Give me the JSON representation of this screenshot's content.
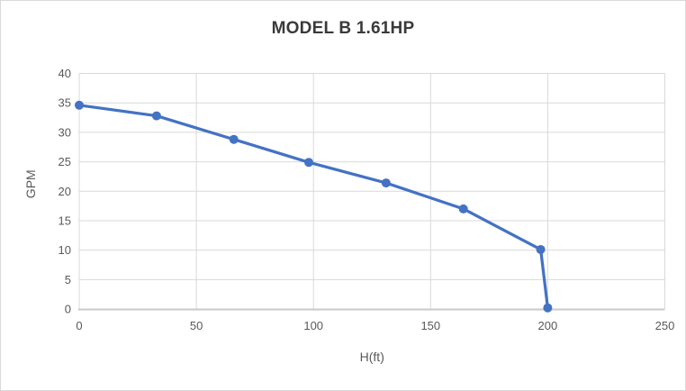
{
  "chart_data": {
    "type": "line",
    "title": "MODEL B 1.61HP",
    "xlabel": "H(ft)",
    "ylabel": "GPM",
    "x": [
      0,
      33,
      66,
      98,
      131,
      164,
      197,
      200
    ],
    "y": [
      34.6,
      32.8,
      28.8,
      24.9,
      21.4,
      17,
      10.1,
      0.2
    ],
    "series_name": "",
    "xlim": [
      0,
      250
    ],
    "ylim": [
      0,
      40
    ],
    "x_ticks": [
      0,
      50,
      100,
      150,
      200,
      250
    ],
    "y_ticks": [
      0,
      5,
      10,
      15,
      20,
      25,
      30,
      35,
      40
    ],
    "grid": true,
    "legend": false,
    "marker": "circle"
  },
  "colors": {
    "line": "#4472C4",
    "marker": "#4472C4",
    "gridline": "#D9D9D9",
    "axis_line": "#C9C9C9",
    "tick_label": "#595959",
    "axis_title": "#595959",
    "title": "#3A3A3A",
    "border": "#D9D9D9",
    "background": "#FFFFFF"
  }
}
